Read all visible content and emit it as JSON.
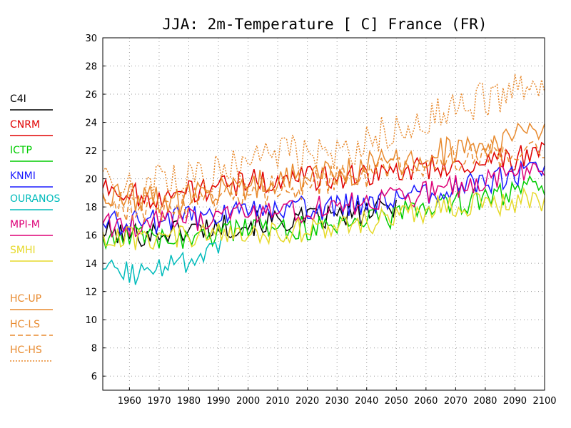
{
  "chart_data": {
    "type": "line",
    "title": "JJA: 2m-Temperature [  C] France (FR)",
    "xlim": [
      1951,
      2100
    ],
    "ylim": [
      5,
      30
    ],
    "x_ticks": [
      1960,
      1970,
      1980,
      1990,
      2000,
      2010,
      2020,
      2030,
      2040,
      2050,
      2060,
      2070,
      2080,
      2090,
      2100
    ],
    "y_ticks": [
      6,
      8,
      10,
      12,
      14,
      16,
      18,
      20,
      22,
      24,
      26,
      28,
      30
    ],
    "grid": true,
    "legend_position": "left",
    "series": [
      {
        "name": "C4I",
        "color": "#000000",
        "dash": "solid",
        "x_range": [
          1951,
          2050
        ],
        "anchor_years": [
          1951,
          1960,
          1970,
          1980,
          1990,
          2000,
          2010,
          2020,
          2030,
          2040,
          2050
        ],
        "values": [
          16.2,
          16.0,
          16.2,
          16.4,
          16.6,
          16.8,
          17.0,
          17.1,
          17.3,
          17.6,
          18.0
        ]
      },
      {
        "name": "CNRM",
        "color": "#e00000",
        "dash": "solid",
        "x_range": [
          1951,
          2100
        ],
        "anchor_years": [
          1951,
          1960,
          1970,
          1980,
          1990,
          2000,
          2010,
          2020,
          2030,
          2040,
          2050,
          2060,
          2070,
          2080,
          2090,
          2100
        ],
        "values": [
          19.6,
          18.9,
          18.8,
          19.0,
          19.4,
          19.8,
          20.0,
          20.0,
          20.1,
          20.3,
          20.5,
          20.8,
          21.0,
          21.2,
          21.5,
          22.0
        ]
      },
      {
        "name": "ICTP",
        "color": "#00cc00",
        "dash": "solid",
        "x_range": [
          1951,
          2100
        ],
        "anchor_years": [
          1951,
          1960,
          1970,
          1980,
          1990,
          2000,
          2010,
          2020,
          2030,
          2040,
          2050,
          2060,
          2070,
          2080,
          2090,
          2100
        ],
        "values": [
          16.0,
          15.8,
          15.9,
          15.9,
          16.1,
          16.3,
          16.4,
          16.5,
          16.8,
          17.0,
          17.4,
          17.9,
          18.3,
          18.6,
          19.0,
          19.6
        ]
      },
      {
        "name": "KNMI",
        "color": "#1a1aff",
        "dash": "solid",
        "x_range": [
          1951,
          2100
        ],
        "anchor_years": [
          1951,
          1960,
          1970,
          1980,
          1990,
          2000,
          2010,
          2020,
          2030,
          2040,
          2050,
          2060,
          2070,
          2080,
          2090,
          2100
        ],
        "values": [
          16.9,
          16.9,
          17.0,
          17.2,
          17.5,
          17.7,
          17.8,
          17.9,
          18.0,
          18.3,
          18.6,
          19.0,
          19.4,
          19.8,
          20.3,
          21.0
        ]
      },
      {
        "name": "OURANOS",
        "color": "#00bbbb",
        "dash": "solid",
        "x_range": [
          1951,
          1991
        ],
        "anchor_years": [
          1951,
          1960,
          1970,
          1980,
          1990,
          1991
        ],
        "values": [
          13.5,
          13.3,
          13.6,
          14.0,
          14.8,
          15.1
        ]
      },
      {
        "name": "MPI-M",
        "color": "#dd0077",
        "dash": "solid",
        "x_range": [
          1951,
          2100
        ],
        "anchor_years": [
          1951,
          1960,
          1970,
          1980,
          1990,
          2000,
          2010,
          2020,
          2030,
          2040,
          2050,
          2060,
          2070,
          2080,
          2090,
          2100
        ],
        "values": [
          16.6,
          16.7,
          16.9,
          17.1,
          17.3,
          17.5,
          17.7,
          17.8,
          18.0,
          18.3,
          18.6,
          19.0,
          19.4,
          19.8,
          20.3,
          20.8
        ]
      },
      {
        "name": "SMHI",
        "color": "#e6d92a",
        "dash": "solid",
        "x_range": [
          1951,
          2100
        ],
        "anchor_years": [
          1951,
          1960,
          1970,
          1980,
          1990,
          2000,
          2010,
          2020,
          2030,
          2040,
          2050,
          2060,
          2070,
          2080,
          2090,
          2100
        ],
        "values": [
          15.9,
          15.7,
          15.8,
          15.9,
          16.0,
          16.1,
          16.3,
          16.4,
          16.6,
          16.9,
          17.3,
          17.8,
          18.1,
          18.2,
          18.4,
          18.6
        ]
      },
      {
        "name": "HC-UP",
        "color": "#e88a2e",
        "dash": "solid",
        "x_range": [
          1951,
          2100
        ],
        "anchor_years": [
          1951,
          1960,
          1970,
          1980,
          1990,
          2000,
          2010,
          2020,
          2030,
          2040,
          2050,
          2060,
          2070,
          2080,
          2090,
          2100
        ],
        "values": [
          18.4,
          18.6,
          18.4,
          18.6,
          19.0,
          19.6,
          20.0,
          20.2,
          20.4,
          20.8,
          21.3,
          21.8,
          22.1,
          22.4,
          22.8,
          23.0
        ]
      },
      {
        "name": "HC-LS",
        "color": "#e88a2e",
        "dash": "dashed",
        "x_range": [
          1951,
          2100
        ],
        "anchor_years": [
          1951,
          1960,
          1970,
          1980,
          1990,
          2000,
          2010,
          2020,
          2030,
          2040,
          2050,
          2060,
          2070,
          2080,
          2090,
          2100
        ],
        "values": [
          18.0,
          18.1,
          17.9,
          18.2,
          18.6,
          19.0,
          19.3,
          19.6,
          19.9,
          20.2,
          20.6,
          21.0,
          21.3,
          21.6,
          21.9,
          22.0
        ]
      },
      {
        "name": "HC-HS",
        "color": "#e88a2e",
        "dash": "dotted",
        "x_range": [
          1951,
          2100
        ],
        "anchor_years": [
          1951,
          1960,
          1970,
          1980,
          1990,
          2000,
          2010,
          2020,
          2030,
          2040,
          2050,
          2060,
          2070,
          2080,
          2090,
          2100
        ],
        "values": [
          19.4,
          19.6,
          19.7,
          19.9,
          20.5,
          21.2,
          21.6,
          21.9,
          22.1,
          22.6,
          23.4,
          24.2,
          25.0,
          25.6,
          26.4,
          25.8
        ]
      }
    ]
  }
}
